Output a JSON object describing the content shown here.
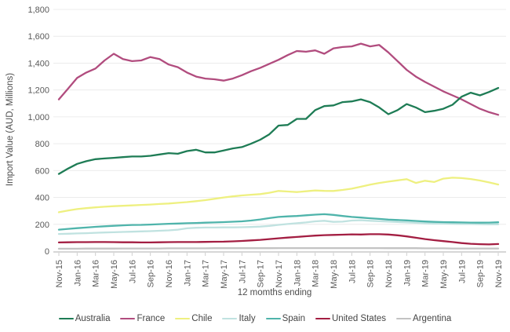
{
  "chart_data": {
    "type": "line",
    "title": "",
    "xlabel": "12 momths ending",
    "ylabel": "Import Value (AUD, Millions)",
    "x": [
      "Nov-15",
      "Dec-15",
      "Jan-16",
      "Feb-16",
      "Mar-16",
      "Apr-16",
      "May-16",
      "Jun-16",
      "Jul-16",
      "Aug-16",
      "Sep-16",
      "Oct-16",
      "Nov-16",
      "Dec-16",
      "Jan-17",
      "Feb-17",
      "Mar-17",
      "Apr-17",
      "May-17",
      "Jun-17",
      "Jul-17",
      "Aug-17",
      "Sep-17",
      "Oct-17",
      "Nov-17",
      "Dec-17",
      "Jan-18",
      "Feb-18",
      "Mar-18",
      "Apr-18",
      "May-18",
      "Jun-18",
      "Jul-18",
      "Aug-18",
      "Sep-18",
      "Oct-18",
      "Nov-18",
      "Dec-18",
      "Jan-19",
      "Feb-19",
      "Mar-19",
      "Apr-19",
      "May-19",
      "Jun-19",
      "Jul-19",
      "Aug-19",
      "Sep-19",
      "Oct-19",
      "Nov-19"
    ],
    "x_tick_every": 2,
    "x_tick_labels": [
      "Nov-15",
      "Jan-16",
      "Mar-16",
      "May-16",
      "Jul-16",
      "Sep-16",
      "Nov-16",
      "Jan-17",
      "Mar-17",
      "May-17",
      "Jul-17",
      "Sep-17",
      "Nov-17",
      "Jan-18",
      "Mar-18",
      "May-18",
      "Jul-18",
      "Sep-18",
      "Nov-18",
      "Jan-19",
      "Mar-19",
      "May-19",
      "Jul-19",
      "Sep-19",
      "Nov-19"
    ],
    "ylim": [
      0,
      1800
    ],
    "ytick_step": 200,
    "y_tick_labels": [
      "0",
      "200",
      "400",
      "600",
      "800",
      "1,000",
      "1,200",
      "1,400",
      "1,600",
      "1,800"
    ],
    "grid": "horizontal",
    "legend_position": "bottom",
    "series": [
      {
        "name": "Australia",
        "color": "#1e7c55",
        "values": [
          575,
          615,
          650,
          670,
          685,
          690,
          695,
          700,
          705,
          705,
          710,
          720,
          730,
          725,
          745,
          755,
          735,
          735,
          750,
          765,
          775,
          800,
          830,
          870,
          935,
          940,
          985,
          985,
          1050,
          1080,
          1085,
          1110,
          1115,
          1130,
          1110,
          1070,
          1020,
          1050,
          1095,
          1070,
          1035,
          1045,
          1060,
          1090,
          1150,
          1180,
          1160,
          1185,
          1215
        ]
      },
      {
        "name": "France",
        "color": "#b14c7e",
        "values": [
          1130,
          1210,
          1290,
          1330,
          1360,
          1420,
          1470,
          1430,
          1415,
          1420,
          1445,
          1430,
          1390,
          1370,
          1330,
          1300,
          1285,
          1280,
          1270,
          1285,
          1310,
          1340,
          1365,
          1395,
          1425,
          1460,
          1490,
          1485,
          1495,
          1470,
          1510,
          1520,
          1525,
          1545,
          1525,
          1535,
          1480,
          1415,
          1350,
          1300,
          1260,
          1225,
          1190,
          1160,
          1130,
          1095,
          1060,
          1035,
          1015
        ]
      },
      {
        "name": "Chile",
        "color": "#eef080",
        "values": [
          290,
          303,
          313,
          320,
          326,
          331,
          335,
          338,
          341,
          344,
          347,
          351,
          355,
          360,
          365,
          372,
          380,
          390,
          400,
          408,
          415,
          420,
          425,
          435,
          448,
          444,
          440,
          446,
          452,
          449,
          448,
          456,
          465,
          480,
          495,
          508,
          518,
          527,
          536,
          508,
          524,
          515,
          540,
          547,
          544,
          537,
          526,
          512,
          496
        ]
      },
      {
        "name": "Italy",
        "color": "#c0e2e0",
        "values": [
          128,
          130,
          132,
          134,
          137,
          139,
          141,
          143,
          145,
          147,
          149,
          152,
          155,
          160,
          170,
          174,
          176,
          176,
          177,
          177,
          178,
          180,
          183,
          188,
          196,
          202,
          208,
          214,
          222,
          226,
          218,
          220,
          228,
          230,
          226,
          223,
          220,
          217,
          214,
          211,
          208,
          206,
          205,
          204,
          203,
          202,
          201,
          200,
          200
        ]
      },
      {
        "name": "Spain",
        "color": "#4fb4ab",
        "values": [
          160,
          166,
          171,
          176,
          181,
          185,
          189,
          192,
          195,
          196,
          198,
          201,
          204,
          206,
          208,
          210,
          212,
          214,
          216,
          219,
          222,
          228,
          236,
          246,
          255,
          259,
          262,
          267,
          272,
          275,
          270,
          262,
          255,
          250,
          245,
          240,
          235,
          232,
          229,
          225,
          221,
          218,
          216,
          215,
          214,
          213,
          212,
          213,
          215
        ]
      },
      {
        "name": "United States",
        "color": "#a31e42",
        "values": [
          65,
          66,
          67,
          67,
          68,
          68,
          67,
          66,
          66,
          65,
          65,
          66,
          67,
          68,
          68,
          68,
          69,
          70,
          71,
          73,
          76,
          80,
          84,
          90,
          96,
          101,
          106,
          111,
          116,
          119,
          121,
          123,
          125,
          124,
          126,
          126,
          124,
          118,
          110,
          100,
          90,
          82,
          75,
          68,
          60,
          55,
          52,
          50,
          53
        ]
      },
      {
        "name": "Argentina",
        "color": "#c3c3c3",
        "values": [
          18,
          18,
          18,
          19,
          19,
          19,
          19,
          20,
          20,
          20,
          20,
          20,
          21,
          21,
          21,
          21,
          21,
          22,
          22,
          22,
          22,
          22,
          22,
          22,
          23,
          23,
          23,
          23,
          23,
          23,
          23,
          23,
          23,
          23,
          23,
          23,
          22,
          22,
          22,
          22,
          21,
          21,
          21,
          20,
          20,
          20,
          20,
          20,
          20
        ]
      }
    ]
  }
}
